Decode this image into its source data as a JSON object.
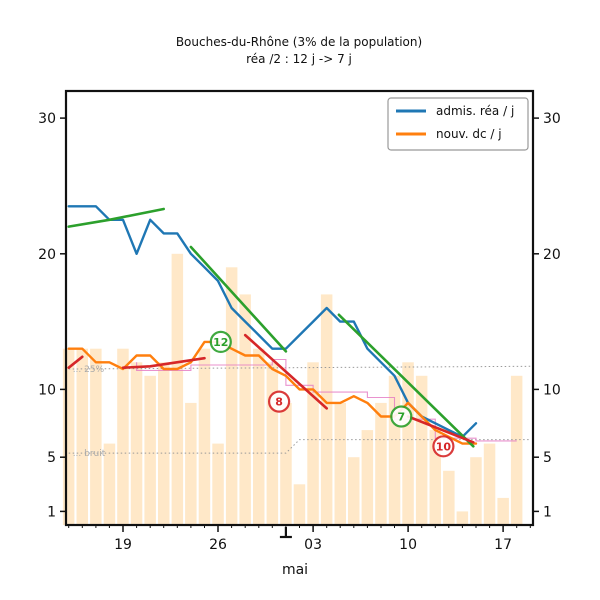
{
  "chart_data": {
    "type": "line",
    "title": "Bouches-du-Rhône (3% de la population)",
    "subtitle": "réa /2 : 12 j -> 7 j",
    "xlabel": "mai",
    "ylabel": "",
    "x_ticks": [
      {
        "day": 19,
        "label": "19"
      },
      {
        "day": 26,
        "label": "26"
      },
      {
        "day": 33,
        "label": "03"
      },
      {
        "day": 40,
        "label": "10"
      },
      {
        "day": 47,
        "label": "17"
      }
    ],
    "y_ticks": [
      1,
      5,
      10,
      20,
      30
    ],
    "ylim": [
      0,
      32
    ],
    "xlim": [
      14.8,
      49.2
    ],
    "legend_position": "top-right",
    "series": [
      {
        "name": "admis. réa / j",
        "color": "#1f77b4",
        "points": [
          [
            15,
            23.5
          ],
          [
            16,
            23.5
          ],
          [
            17,
            23.5
          ],
          [
            18,
            22.5
          ],
          [
            19,
            22.5
          ],
          [
            20,
            20
          ],
          [
            21,
            22.5
          ],
          [
            22,
            21.5
          ],
          [
            23,
            21.5
          ],
          [
            24,
            20
          ],
          [
            25,
            19
          ],
          [
            26,
            18
          ],
          [
            27,
            16
          ],
          [
            28,
            15
          ],
          [
            29,
            14
          ],
          [
            30,
            13
          ],
          [
            31,
            13
          ],
          [
            32,
            14
          ],
          [
            33,
            15
          ],
          [
            34,
            16
          ],
          [
            35,
            15
          ],
          [
            36,
            15
          ],
          [
            37,
            13
          ],
          [
            38,
            12
          ],
          [
            39,
            11
          ],
          [
            40,
            9
          ],
          [
            41,
            8
          ],
          [
            42,
            7.5
          ],
          [
            43,
            7
          ],
          [
            44,
            6.5
          ],
          [
            45,
            7.5
          ]
        ]
      },
      {
        "name": "nouv. dc / j",
        "color": "#ff7f0e",
        "points": [
          [
            15,
            13
          ],
          [
            16,
            13
          ],
          [
            17,
            12
          ],
          [
            18,
            12
          ],
          [
            19,
            11.5
          ],
          [
            20,
            12.5
          ],
          [
            21,
            12.5
          ],
          [
            22,
            11.5
          ],
          [
            23,
            11.5
          ],
          [
            24,
            12
          ],
          [
            25,
            13.5
          ],
          [
            26,
            13.5
          ],
          [
            27,
            13
          ],
          [
            28,
            12.5
          ],
          [
            29,
            12.5
          ],
          [
            30,
            11.5
          ],
          [
            31,
            11
          ],
          [
            32,
            10
          ],
          [
            33,
            10
          ],
          [
            34,
            9
          ],
          [
            35,
            9
          ],
          [
            36,
            9.5
          ],
          [
            37,
            9
          ],
          [
            38,
            8
          ],
          [
            39,
            8
          ],
          [
            40,
            9
          ],
          [
            41,
            8
          ],
          [
            42,
            7
          ],
          [
            43,
            6.5
          ],
          [
            44,
            6
          ],
          [
            45,
            6
          ]
        ]
      }
    ],
    "trends": [
      {
        "color": "#2ca02c",
        "points": [
          [
            15,
            22
          ],
          [
            18,
            22.5
          ],
          [
            22,
            23.3
          ]
        ]
      },
      {
        "color": "#2ca02c",
        "points": [
          [
            24,
            20.5
          ],
          [
            31,
            12.8
          ]
        ]
      },
      {
        "color": "#2ca02c",
        "points": [
          [
            34.9,
            15.5
          ],
          [
            44.8,
            5.8
          ]
        ]
      },
      {
        "color": "#d62728",
        "points": [
          [
            15,
            11.6
          ],
          [
            16,
            12.4
          ]
        ]
      },
      {
        "color": "#d62728",
        "points": [
          [
            19,
            11.6
          ],
          [
            21,
            11.7
          ],
          [
            25,
            12.3
          ]
        ]
      },
      {
        "color": "#d62728",
        "points": [
          [
            28,
            14
          ],
          [
            34,
            8.6
          ]
        ]
      },
      {
        "color": "#d62728",
        "points": [
          [
            40,
            8
          ],
          [
            44.8,
            6.1
          ]
        ]
      }
    ],
    "bars": {
      "color": "#ffe8c8",
      "values": [
        [
          15,
          13
        ],
        [
          16,
          13
        ],
        [
          17,
          13
        ],
        [
          18,
          6
        ],
        [
          19,
          13
        ],
        [
          20,
          12
        ],
        [
          21,
          11
        ],
        [
          22,
          12
        ],
        [
          23,
          20
        ],
        [
          24,
          9
        ],
        [
          25,
          13
        ],
        [
          26,
          6
        ],
        [
          27,
          19
        ],
        [
          28,
          17
        ],
        [
          29,
          13
        ],
        [
          30,
          12
        ],
        [
          31,
          9
        ],
        [
          32,
          3
        ],
        [
          33,
          12
        ],
        [
          34,
          17
        ],
        [
          35,
          9
        ],
        [
          36,
          5
        ],
        [
          37,
          7
        ],
        [
          38,
          9
        ],
        [
          39,
          11
        ],
        [
          40,
          12
        ],
        [
          41,
          11
        ],
        [
          42,
          7
        ],
        [
          43,
          4
        ],
        [
          44,
          1
        ],
        [
          45,
          5
        ],
        [
          46,
          6
        ],
        [
          47,
          2
        ],
        [
          48,
          11
        ]
      ]
    },
    "thresholds": [
      {
        "label": "25%",
        "color": "#999999",
        "points": [
          [
            15,
            11.5
          ],
          [
            49,
            11.7
          ]
        ]
      },
      {
        "label": "bruit",
        "color": "#999999",
        "points": [
          [
            15,
            5.3
          ],
          [
            31,
            5.3
          ],
          [
            32,
            6.3
          ],
          [
            49,
            6.3
          ]
        ]
      }
    ],
    "pink_lines": [
      {
        "color": "#e377c2",
        "points": [
          [
            20,
            12
          ],
          [
            20,
            11.4
          ],
          [
            24,
            11.4
          ],
          [
            24,
            11.8
          ],
          [
            30,
            11.8
          ],
          [
            30,
            12.2
          ],
          [
            31,
            12.2
          ],
          [
            31,
            10.3
          ],
          [
            33,
            10.3
          ],
          [
            33,
            9.8
          ],
          [
            37,
            9.8
          ],
          [
            37,
            9.4
          ],
          [
            39,
            9.4
          ],
          [
            39,
            7.8
          ],
          [
            42,
            7.8
          ],
          [
            42,
            6.4
          ],
          [
            45,
            6.4
          ],
          [
            45,
            6.2
          ],
          [
            48,
            6.2
          ]
        ]
      }
    ],
    "badges": [
      {
        "label": "12",
        "x": 26.2,
        "y": 13.5,
        "color": "#2ca02c"
      },
      {
        "label": "8",
        "x": 30.5,
        "y": 9.1,
        "color": "#d62728"
      },
      {
        "label": "7",
        "x": 39.5,
        "y": 8.0,
        "color": "#2ca02c"
      },
      {
        "label": "10",
        "x": 42.6,
        "y": 5.8,
        "color": "#d62728"
      }
    ]
  }
}
